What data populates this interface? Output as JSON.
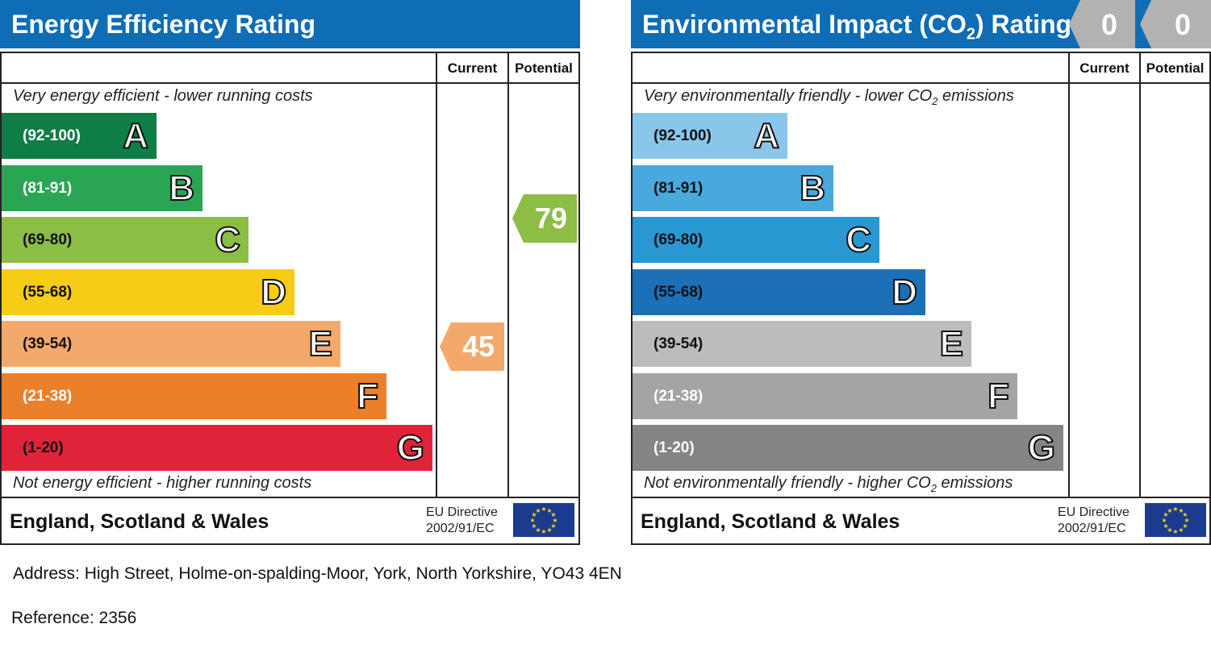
{
  "energy": {
    "title": "Energy Efficiency Rating",
    "col_current": "Current",
    "col_potential": "Potential",
    "top_note": "Very energy efficient - lower running costs",
    "bottom_note": "Not energy efficient - higher running costs",
    "region": "England, Scotland & Wales",
    "eu_line1": "EU Directive",
    "eu_line2": "2002/91/EC",
    "current_label": "45",
    "potential_label": "79"
  },
  "environment": {
    "title_part1": "Environmental Impact (CO",
    "title_sub": "2",
    "title_part2": ") Rating",
    "col_current": "Current",
    "col_potential": "Potential",
    "top_note_part1": "Very environmentally friendly - lower CO",
    "top_note_sub": "2",
    "top_note_part2": " emissions",
    "bottom_note_part1": "Not environmentally friendly - higher CO",
    "bottom_note_sub": "2",
    "bottom_note_part2": " emissions",
    "region": "England, Scotland & Wales",
    "eu_line1": "EU Directive",
    "eu_line2": "2002/91/EC",
    "current_label": "0",
    "potential_label": "0"
  },
  "footer": {
    "address": "Address: High Street, Holme-on-spalding-Moor, York, North Yorkshire, YO43 4EN",
    "reference": "Reference: 2356"
  },
  "chart_data": [
    {
      "type": "bar",
      "title": "Energy Efficiency Rating",
      "categories": [
        "(92-100)",
        "(81-91)",
        "(69-80)",
        "(55-68)",
        "(39-54)",
        "(21-38)",
        "(1-20)"
      ],
      "letters": [
        "A",
        "B",
        "C",
        "D",
        "E",
        "F",
        "G"
      ],
      "colors": [
        "#0f7d46",
        "#2aa554",
        "#8cbd44",
        "#f6cc17",
        "#f3a96b",
        "#ec7f2a",
        "#e1233a"
      ],
      "text_colors": [
        "#ffffff",
        "#ffffff",
        "#111111",
        "#111111",
        "#111111",
        "#ffffff",
        "#111111"
      ],
      "current": 45,
      "current_band": "E",
      "current_color": "#f3a96b",
      "potential": 79,
      "potential_band": "C",
      "potential_color": "#8cbd44"
    },
    {
      "type": "bar",
      "title": "Environmental Impact (CO2) Rating",
      "categories": [
        "(92-100)",
        "(81-91)",
        "(69-80)",
        "(55-68)",
        "(39-54)",
        "(21-38)",
        "(1-20)"
      ],
      "letters": [
        "A",
        "B",
        "C",
        "D",
        "E",
        "F",
        "G"
      ],
      "colors": [
        "#8ac6ea",
        "#49a8dc",
        "#2897d2",
        "#1b70b7",
        "#bcbcbc",
        "#a4a4a4",
        "#858585"
      ],
      "text_colors": [
        "#111111",
        "#111111",
        "#111111",
        "#111111",
        "#111111",
        "#ffffff",
        "#ffffff"
      ],
      "current": 0,
      "potential": 0,
      "tab_color": "#b2b2b2"
    }
  ]
}
